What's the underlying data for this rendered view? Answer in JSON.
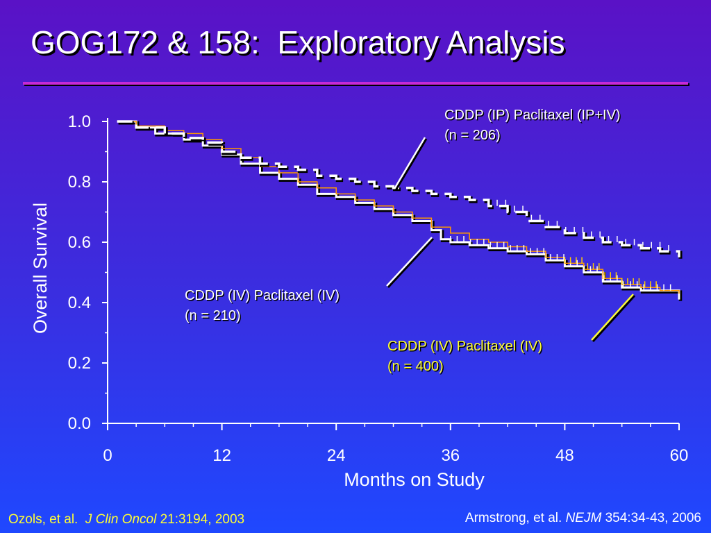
{
  "slide": {
    "title": "GOG172 & 158:  Exploratory Analysis"
  },
  "references": {
    "left": {
      "author": "Ozols, et al.  ",
      "journal": "J Clin Oncol",
      "detail": " 21:3194, 2003",
      "color": "#ffff33"
    },
    "right": {
      "author": "Armstrong, et al. ",
      "journal": "NEJM",
      "detail": " 354:34-43, 2006",
      "color": "#ffffff"
    }
  },
  "colors": {
    "axis": "#ffffff",
    "ip_series": "#ffffff",
    "iv_series": "#ffffff",
    "iv400_series": "#ff9900",
    "iv400_label": "#ffff33",
    "title_rule": "#c62ad6"
  },
  "chart_data": {
    "type": "line",
    "title": "",
    "xlabel": "Months on Study",
    "ylabel": "Overall Survival",
    "xlim": [
      0,
      60
    ],
    "ylim": [
      0,
      1.0
    ],
    "xticks": [
      0,
      12,
      24,
      36,
      48,
      60
    ],
    "xtick_labels": [
      "0",
      "12",
      "24",
      "36",
      "48",
      "60"
    ],
    "yticks": [
      0,
      0.2,
      0.4,
      0.6,
      0.8,
      1.0
    ],
    "ytick_labels": [
      "0.0",
      "0.2",
      "0.4",
      "0.6",
      "0.8",
      "1.0"
    ],
    "grid": false,
    "series": [
      {
        "name": "CDDP (IP) Paclitaxel (IP+IV)",
        "n_label": "(n = 206)",
        "style": "dashed",
        "x": [
          1,
          3,
          6,
          8,
          10,
          12,
          14,
          16,
          18,
          20,
          22,
          24,
          26,
          28,
          30,
          32,
          34,
          36,
          38,
          40,
          42,
          44,
          46,
          48,
          50,
          52,
          54,
          56,
          58,
          60
        ],
        "y": [
          1.0,
          0.98,
          0.96,
          0.945,
          0.93,
          0.9,
          0.88,
          0.86,
          0.85,
          0.84,
          0.82,
          0.81,
          0.8,
          0.785,
          0.78,
          0.77,
          0.76,
          0.75,
          0.74,
          0.72,
          0.7,
          0.67,
          0.65,
          0.63,
          0.615,
          0.6,
          0.59,
          0.58,
          0.57,
          0.55
        ]
      },
      {
        "name": "CDDP (IV) Paclitaxel (IV)",
        "n_label": "(n = 210)",
        "style": "solid",
        "x": [
          1,
          3,
          5,
          8,
          10,
          12,
          14,
          16,
          18,
          20,
          22,
          24,
          26,
          28,
          30,
          32,
          34,
          35,
          36,
          38,
          40,
          42,
          44,
          46,
          48,
          50,
          52,
          54,
          56,
          58,
          60
        ],
        "y": [
          1.0,
          0.98,
          0.96,
          0.94,
          0.92,
          0.89,
          0.86,
          0.83,
          0.81,
          0.79,
          0.76,
          0.75,
          0.73,
          0.71,
          0.69,
          0.67,
          0.64,
          0.61,
          0.6,
          0.59,
          0.58,
          0.57,
          0.56,
          0.54,
          0.52,
          0.5,
          0.47,
          0.45,
          0.44,
          0.44,
          0.41
        ]
      },
      {
        "name": "CDDP (IV) Paclitaxel (IV)",
        "n_label": "(n = 400)",
        "style": "solid",
        "x": [
          1,
          3,
          6,
          8,
          10,
          12,
          14,
          16,
          18,
          20,
          22,
          24,
          26,
          28,
          30,
          32,
          34,
          36,
          38,
          40,
          42,
          44,
          46,
          48,
          50,
          52,
          54,
          56,
          58,
          60
        ],
        "y": [
          1.0,
          0.985,
          0.97,
          0.96,
          0.94,
          0.91,
          0.88,
          0.85,
          0.83,
          0.8,
          0.78,
          0.76,
          0.74,
          0.72,
          0.7,
          0.68,
          0.65,
          0.63,
          0.61,
          0.6,
          0.585,
          0.57,
          0.55,
          0.53,
          0.51,
          0.48,
          0.46,
          0.45,
          0.44,
          0.43
        ]
      }
    ],
    "annotations": [
      {
        "series_index": 0,
        "line1": "CDDP (IP) Paclitaxel (IP+IV)",
        "line2": "(n = 206)",
        "color": "#ffffff"
      },
      {
        "series_index": 1,
        "line1": "CDDP (IV) Paclitaxel (IV)",
        "line2": "(n = 210)",
        "color": "#ffffff"
      },
      {
        "series_index": 2,
        "line1": "CDDP (IV) Paclitaxel (IV)",
        "line2": "(n = 400)",
        "color": "#ffff33"
      }
    ]
  }
}
